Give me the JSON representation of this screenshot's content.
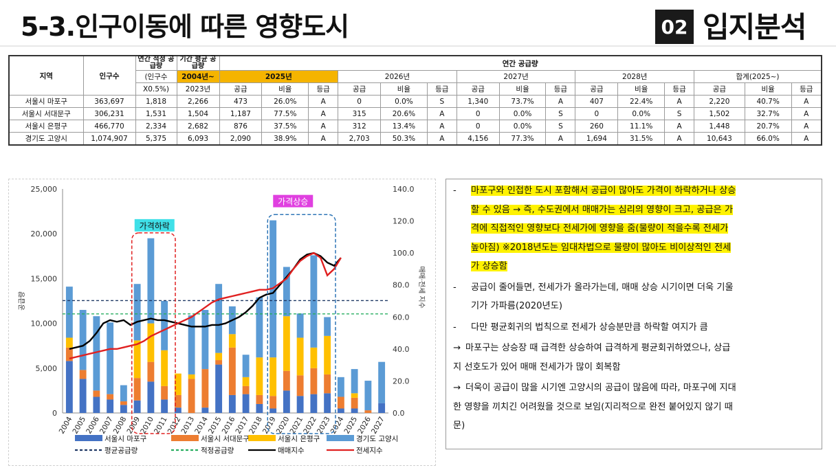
{
  "header": {
    "title": "5-3.인구이동에 따른 영향도시",
    "section_no": "02",
    "section_title": "입지분석"
  },
  "table": {
    "h_region": "지역",
    "h_pop": "인구수",
    "h_annual": "연간 적정 공급량",
    "h_annual_sub1": "(인구수",
    "h_annual_sub2": "X0.5%)",
    "h_period": "기간 평균 공급량",
    "h_period_sub1": "2004년~",
    "h_period_sub2": "2023년",
    "h_group": "연간 공급량",
    "years": [
      "2025년",
      "2026년",
      "2027년",
      "2028년",
      "합계(2025~)"
    ],
    "sub": [
      "공급",
      "비율",
      "등급"
    ],
    "rows": [
      [
        "서울시 마포구",
        "363,697",
        "1,818",
        "2,266",
        "473",
        "26.0%",
        "A",
        "0",
        "0.0%",
        "S",
        "1,340",
        "73.7%",
        "A",
        "407",
        "22.4%",
        "A",
        "2,220",
        "40.7%",
        "A"
      ],
      [
        "서울시 서대문구",
        "306,231",
        "1,531",
        "1,504",
        "1,187",
        "77.5%",
        "A",
        "315",
        "20.6%",
        "A",
        "0",
        "0.0%",
        "S",
        "0",
        "0.0%",
        "S",
        "1,502",
        "32.7%",
        "A"
      ],
      [
        "서울시 은평구",
        "466,770",
        "2,334",
        "2,682",
        "876",
        "37.5%",
        "A",
        "312",
        "13.4%",
        "A",
        "0",
        "0.0%",
        "S",
        "260",
        "11.1%",
        "A",
        "1,448",
        "20.7%",
        "A"
      ],
      [
        "경기도 고양시",
        "1,074,907",
        "5,375",
        "6,093",
        "2,090",
        "38.9%",
        "A",
        "2,703",
        "50.3%",
        "A",
        "4,156",
        "77.3%",
        "A",
        "1,694",
        "31.5%",
        "A",
        "10,643",
        "66.0%",
        "A"
      ]
    ]
  },
  "chart_data": {
    "type": "bar",
    "categories": [
      "2004",
      "2005",
      "2006",
      "2007",
      "2008",
      "2009",
      "2010",
      "2011",
      "2012",
      "2013",
      "2014",
      "2015",
      "2016",
      "2017",
      "2018",
      "2019",
      "2020",
      "2021",
      "2022",
      "2023",
      "2024",
      "2025",
      "2026",
      "2027"
    ],
    "ylim": [
      0,
      25000
    ],
    "y2lim": [
      0,
      140
    ],
    "yticks": [
      "0",
      "5,000",
      "10,000",
      "15,000",
      "20,000",
      "25,000"
    ],
    "y2ticks": [
      "0.0",
      "20.0",
      "40.0",
      "60.0",
      "80.0",
      "100.0",
      "120.0",
      "140.0"
    ],
    "ylabel": "공급량",
    "y2label": "매매·전세 지수",
    "series": [
      {
        "name": "서울시 마포구",
        "color": "#4472c4",
        "values": [
          5800,
          3800,
          1800,
          1500,
          900,
          1400,
          3500,
          1500,
          600,
          0,
          600,
          5400,
          2000,
          2100,
          1000,
          500,
          2500,
          1900,
          2100,
          2200,
          500,
          500,
          0,
          1100
        ]
      },
      {
        "name": "서울시 서대문구",
        "color": "#ed7d31",
        "values": [
          1500,
          1000,
          700,
          600,
          400,
          2500,
          2200,
          1500,
          1400,
          3800,
          4300,
          500,
          5300,
          900,
          1000,
          1400,
          2200,
          2300,
          2900,
          2100,
          1300,
          1200,
          300,
          0
        ]
      },
      {
        "name": "서울시 은평구",
        "color": "#ffc000",
        "values": [
          1100,
          0,
          0,
          0,
          0,
          4200,
          4300,
          4000,
          2400,
          500,
          0,
          800,
          1500,
          1000,
          4200,
          4300,
          6100,
          4200,
          2300,
          4300,
          0,
          500,
          0,
          0
        ]
      },
      {
        "name": "경기도 고양시",
        "color": "#5b9bd5",
        "values": [
          5700,
          6700,
          8300,
          8000,
          1800,
          6300,
          9500,
          5500,
          0,
          6600,
          6600,
          7700,
          3100,
          2500,
          6700,
          15300,
          5500,
          2700,
          10300,
          2100,
          2200,
          2700,
          3300,
          4600
        ]
      }
    ],
    "hlines": [
      {
        "name": "평균공급량",
        "value": 12545,
        "color": "#1f3864"
      },
      {
        "name": "적정공급량",
        "value": 11058,
        "color": "#27ae60"
      }
    ],
    "index_series": [
      {
        "name": "매매지수",
        "color": "#000000",
        "x": [
          2004,
          2004.5,
          2005,
          2005.5,
          2006,
          2006.5,
          2007,
          2007.5,
          2008,
          2008.5,
          2009,
          2009.5,
          2010,
          2010.5,
          2011,
          2011.5,
          2012,
          2012.5,
          2013,
          2013.5,
          2014,
          2014.5,
          2015,
          2015.5,
          2016,
          2016.5,
          2017,
          2017.5,
          2018,
          2018.5,
          2019,
          2019.5,
          2020,
          2020.5,
          2021,
          2021.5,
          2022,
          2022.5,
          2023,
          2023.5,
          2024
        ],
        "values": [
          40,
          41,
          42,
          45,
          50,
          56,
          58,
          57,
          58,
          55,
          57,
          58,
          59,
          58,
          58,
          57,
          56,
          55,
          54,
          54,
          54,
          55,
          55,
          56,
          58,
          60,
          63,
          67,
          72,
          74,
          75,
          80,
          85,
          90,
          96,
          99,
          100,
          98,
          94,
          92,
          97
        ]
      },
      {
        "name": "전세지수",
        "color": "#e02020",
        "x": [
          2004,
          2004.5,
          2005,
          2005.5,
          2006,
          2006.5,
          2007,
          2007.5,
          2008,
          2008.5,
          2009,
          2009.5,
          2010,
          2010.5,
          2011,
          2011.5,
          2012,
          2012.5,
          2013,
          2013.5,
          2014,
          2014.5,
          2015,
          2015.5,
          2016,
          2016.5,
          2017,
          2017.5,
          2018,
          2018.5,
          2019,
          2019.5,
          2020,
          2020.5,
          2021,
          2021.5,
          2022,
          2022.5,
          2023,
          2023.5,
          2024
        ],
        "values": [
          34,
          35,
          36,
          37,
          38,
          39,
          40,
          40,
          41,
          42,
          43,
          45,
          48,
          50,
          52,
          54,
          56,
          58,
          60,
          63,
          66,
          69,
          71,
          72,
          73,
          74,
          75,
          76,
          77,
          77,
          78,
          81,
          84,
          90,
          95,
          98,
          100,
          97,
          86,
          90,
          97
        ]
      }
    ],
    "annotations": [
      {
        "text": "가격하락",
        "from": "2009",
        "to": "2011"
      },
      {
        "text": "가격상승",
        "from": "2019",
        "to": "2023"
      }
    ]
  },
  "notes": [
    {
      "bullet": "-",
      "lines": [
        "마포구와 인접한 도시 포함해서 공급이 많아도 가격이 하락하거나 상승",
        "할 수 있음 → 즉, 수도권에서 매매가는 심리의 영향이 크고, 공급은 가",
        "격에 직접적인 영향보다 전세가에 영향을 줌(물량이 적을수록 전세가",
        "높아짐)  ※2018년도는 임대차법으로 물량이 많아도 비이상적인 전세",
        "가 상승함"
      ]
    },
    {
      "bullet": "-",
      "lines": [
        "공급이 줄어들면, 전세가가 올라가는데, 매매 상승 시기이면 더욱 기울",
        "기가 가파름(2020년도)"
      ]
    },
    {
      "bullet": "-",
      "lines": [
        "다만 평균회귀의 법칙으로 전세가 상승분만큼 하락할 여지가 큼"
      ]
    },
    {
      "bullet": "→",
      "lines": [
        "마포구는 상승장 때 급격한 상승하여 급격하게 평균회귀하였으나, 상급",
        "지 선호도가 있어 매매 전세가가 많이 회복함"
      ]
    },
    {
      "bullet": "→",
      "lines": [
        "더욱이 공급이 많을 시기엔 고양시의 공급이 많음에 따라, 마포구에 지대",
        "한 영향을 끼치긴 어려웠을 것으로 보임(지리적으로 완전 붙어있지 않기 때",
        "문)"
      ]
    }
  ]
}
